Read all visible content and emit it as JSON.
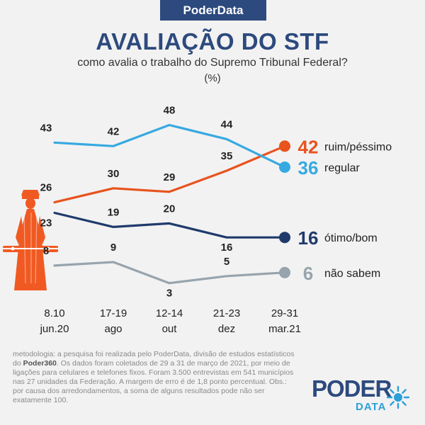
{
  "brand": "PoderData",
  "title": "AVALIAÇÃO DO STF",
  "subtitle": "como avalia o trabalho do Supremo Tribunal Federal?",
  "unit": "(%)",
  "footnote": {
    "part1": "metodologia: a pesquisa foi realizada pelo PoderData, divisão de estudos estatísticos do ",
    "bold": "Poder360",
    "part2": ". Os dados foram coletados de 29 a 31 de março de 2021, por meio de ligações para celulares e telefones fixos. Foram 3.500 entrevistas em 541 municípios nas 27 unidades da Federação. A margem de erro é de 1,8 ponto percentual. Obs.: por causa dos arredondamentos, a soma de alguns resultados pode não ser exatamente 100."
  },
  "logo": {
    "top": "PODER",
    "bottom": "DATA"
  },
  "colors": {
    "title": "#2d4a7e",
    "ruim": "#e8531e",
    "regular": "#37a9e1",
    "otimo": "#1f3a6b",
    "nao_sabem": "#97a4ad",
    "statue": "#f05a22"
  },
  "chart_data": {
    "type": "line",
    "x": [
      {
        "line1": "8.10",
        "line2": "jun.20"
      },
      {
        "line1": "17-19",
        "line2": "ago"
      },
      {
        "line1": "12-14",
        "line2": "out"
      },
      {
        "line1": "21-23",
        "line2": "dez"
      },
      {
        "line1": "29-31",
        "line2": "mar.21"
      }
    ],
    "ylim": [
      0,
      55
    ],
    "grid": false,
    "legend": "end-of-line labels",
    "series": [
      {
        "key": "ruim",
        "name": "ruim/péssimo",
        "color": "#e8531e",
        "values": [
          26,
          30,
          29,
          35,
          42
        ]
      },
      {
        "key": "regular",
        "name": "regular",
        "color": "#37a9e1",
        "values": [
          43,
          42,
          48,
          44,
          36
        ]
      },
      {
        "key": "otimo",
        "name": "ótimo/bom",
        "color": "#1f3a6b",
        "values": [
          23,
          19,
          20,
          16,
          16
        ]
      },
      {
        "key": "nao_sabem",
        "name": "não sabem",
        "color": "#97a4ad",
        "values": [
          8,
          9,
          3,
          5,
          6
        ]
      }
    ]
  }
}
